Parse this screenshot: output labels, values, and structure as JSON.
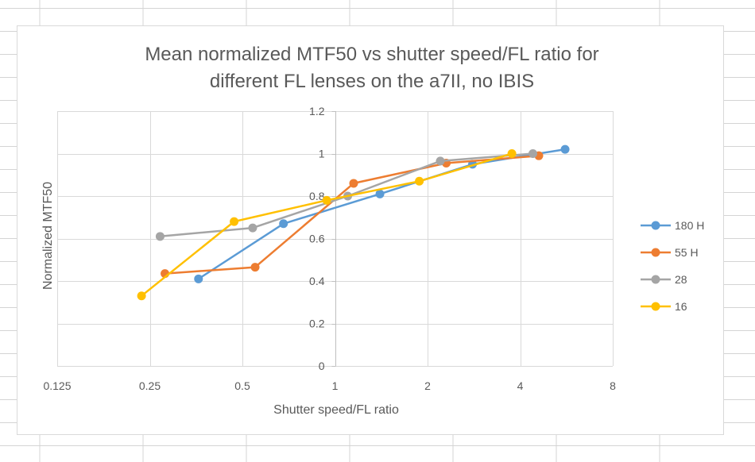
{
  "chart_data": {
    "type": "line",
    "title_lines": [
      "Mean normalized MTF50 vs shutter speed/FL ratio for",
      "different FL lenses on the a7II, no IBIS"
    ],
    "xlabel": "Shutter speed/FL ratio",
    "ylabel": "Normalized MTF50",
    "x_scale": "log2",
    "xlim": [
      0.125,
      8
    ],
    "ylim": [
      0,
      1.2
    ],
    "x_ticks": [
      {
        "value": 0.125,
        "label": "0.125"
      },
      {
        "value": 0.25,
        "label": "0.25"
      },
      {
        "value": 0.5,
        "label": "0.5"
      },
      {
        "value": 1,
        "label": "1"
      },
      {
        "value": 2,
        "label": "2"
      },
      {
        "value": 4,
        "label": "4"
      },
      {
        "value": 8,
        "label": "8"
      }
    ],
    "y_ticks": [
      {
        "value": 0,
        "label": "0"
      },
      {
        "value": 0.2,
        "label": "0.2"
      },
      {
        "value": 0.4,
        "label": "0.4"
      },
      {
        "value": 0.6,
        "label": "0.6"
      },
      {
        "value": 0.8,
        "label": "0.8"
      },
      {
        "value": 1,
        "label": "1"
      },
      {
        "value": 1.2,
        "label": "1.2"
      }
    ],
    "grid": {
      "horizontal": true,
      "vertical": true
    },
    "legend_position": "right",
    "series": [
      {
        "name": "180 H",
        "color": "#5b9bd5",
        "points": [
          [
            0.36,
            0.41
          ],
          [
            0.68,
            0.67
          ],
          [
            1.4,
            0.81
          ],
          [
            2.8,
            0.95
          ],
          [
            5.6,
            1.02
          ]
        ]
      },
      {
        "name": "55 H",
        "color": "#ed7d31",
        "points": [
          [
            0.28,
            0.435
          ],
          [
            0.55,
            0.465
          ],
          [
            1.15,
            0.86
          ],
          [
            2.3,
            0.955
          ],
          [
            4.6,
            0.99
          ]
        ]
      },
      {
        "name": "28",
        "color": "#a5a5a5",
        "points": [
          [
            0.27,
            0.61
          ],
          [
            0.54,
            0.65
          ],
          [
            1.1,
            0.8
          ],
          [
            2.2,
            0.965
          ],
          [
            4.4,
            1.0
          ]
        ]
      },
      {
        "name": "16",
        "color": "#ffc000",
        "points": [
          [
            0.235,
            0.33
          ],
          [
            0.47,
            0.68
          ],
          [
            0.94,
            0.78
          ],
          [
            1.88,
            0.87
          ],
          [
            3.76,
            1.0
          ]
        ]
      }
    ]
  }
}
